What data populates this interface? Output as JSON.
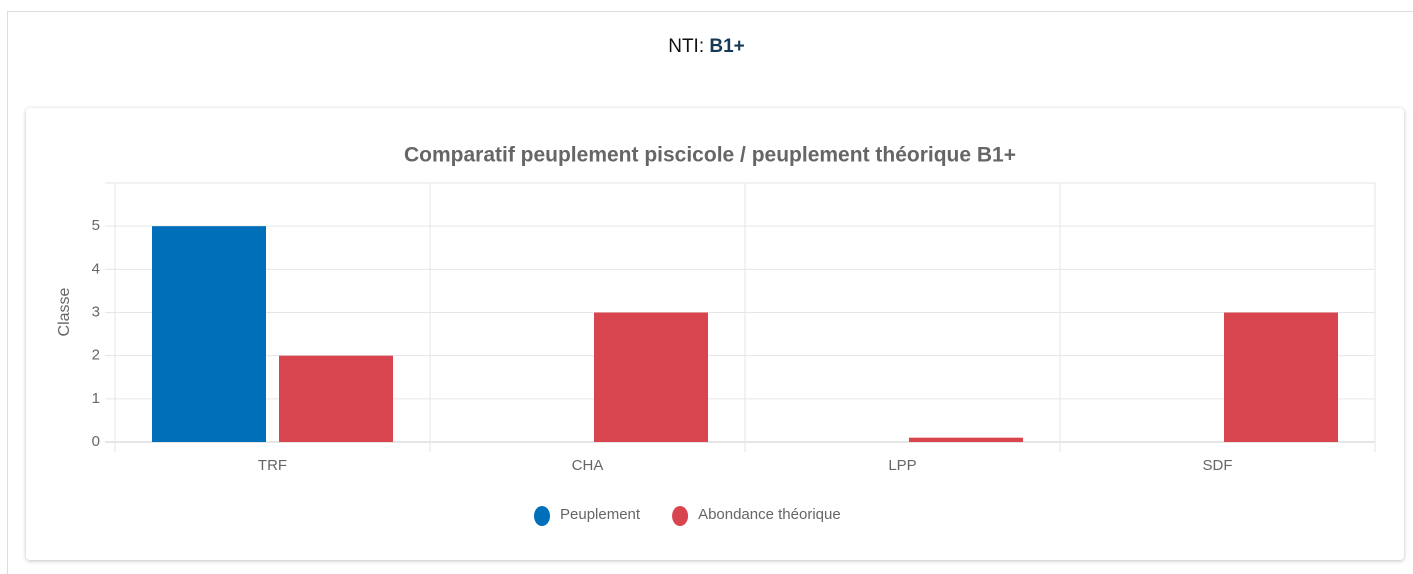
{
  "header": {
    "label": "NTI:",
    "value": "B1+"
  },
  "chart_data": {
    "type": "bar",
    "title": "Comparatif peuplement piscicole / peuplement théorique B1+",
    "y_label": "Classe",
    "categories": [
      "TRF",
      "CHA",
      "LPP",
      "SDF"
    ],
    "series": [
      {
        "name": "Peuplement",
        "color": "#006fba",
        "values": [
          5,
          0,
          0,
          0
        ]
      },
      {
        "name": "Abondance théorique",
        "color": "#d9454f",
        "values": [
          2,
          3,
          0.1,
          3
        ]
      }
    ],
    "ylim": [
      0,
      6
    ],
    "yticks": [
      0,
      1,
      2,
      3,
      4,
      5
    ],
    "grid": true
  }
}
